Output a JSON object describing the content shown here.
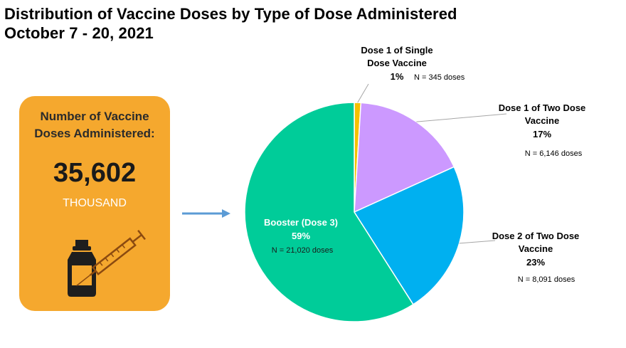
{
  "header": {
    "title_line1": "Distribution of Vaccine Doses by Type of Dose Administered",
    "title_line2": "October 7 - 20, 2021"
  },
  "summary_card": {
    "label_line1": "Number of Vaccine",
    "label_line2": "Doses Administered:",
    "value": "35,602",
    "unit": "THOUSAND",
    "icon": "vaccine-vial-syringe-icon",
    "color": "#f5a82e"
  },
  "arrow_icon": "right-arrow-icon",
  "chart_data": {
    "type": "pie",
    "title": "Distribution of Vaccine Doses by Type of Dose Administered",
    "subtitle": "October 7 - 20, 2021",
    "series": [
      {
        "label_lines": [
          "Dose 1 of Single",
          "Dose Vaccine"
        ],
        "percent_label": "1%",
        "count_label": "N = 345 doses",
        "value": 345,
        "color": "#f5c000"
      },
      {
        "label_lines": [
          "Dose 1 of Two Dose",
          "Vaccine"
        ],
        "percent_label": "17%",
        "count_label": "N = 6,146 doses",
        "value": 6146,
        "color": "#cc99ff"
      },
      {
        "label_lines": [
          "Dose 2 of Two Dose",
          "Vaccine"
        ],
        "percent_label": "23%",
        "count_label": "N = 8,091 doses",
        "value": 8091,
        "color": "#00b0f0"
      },
      {
        "label_lines": [
          "Booster (Dose 3)"
        ],
        "percent_label": "59%",
        "count_label": "N = 21,020 doses",
        "value": 21020,
        "color": "#00cc99"
      }
    ]
  }
}
